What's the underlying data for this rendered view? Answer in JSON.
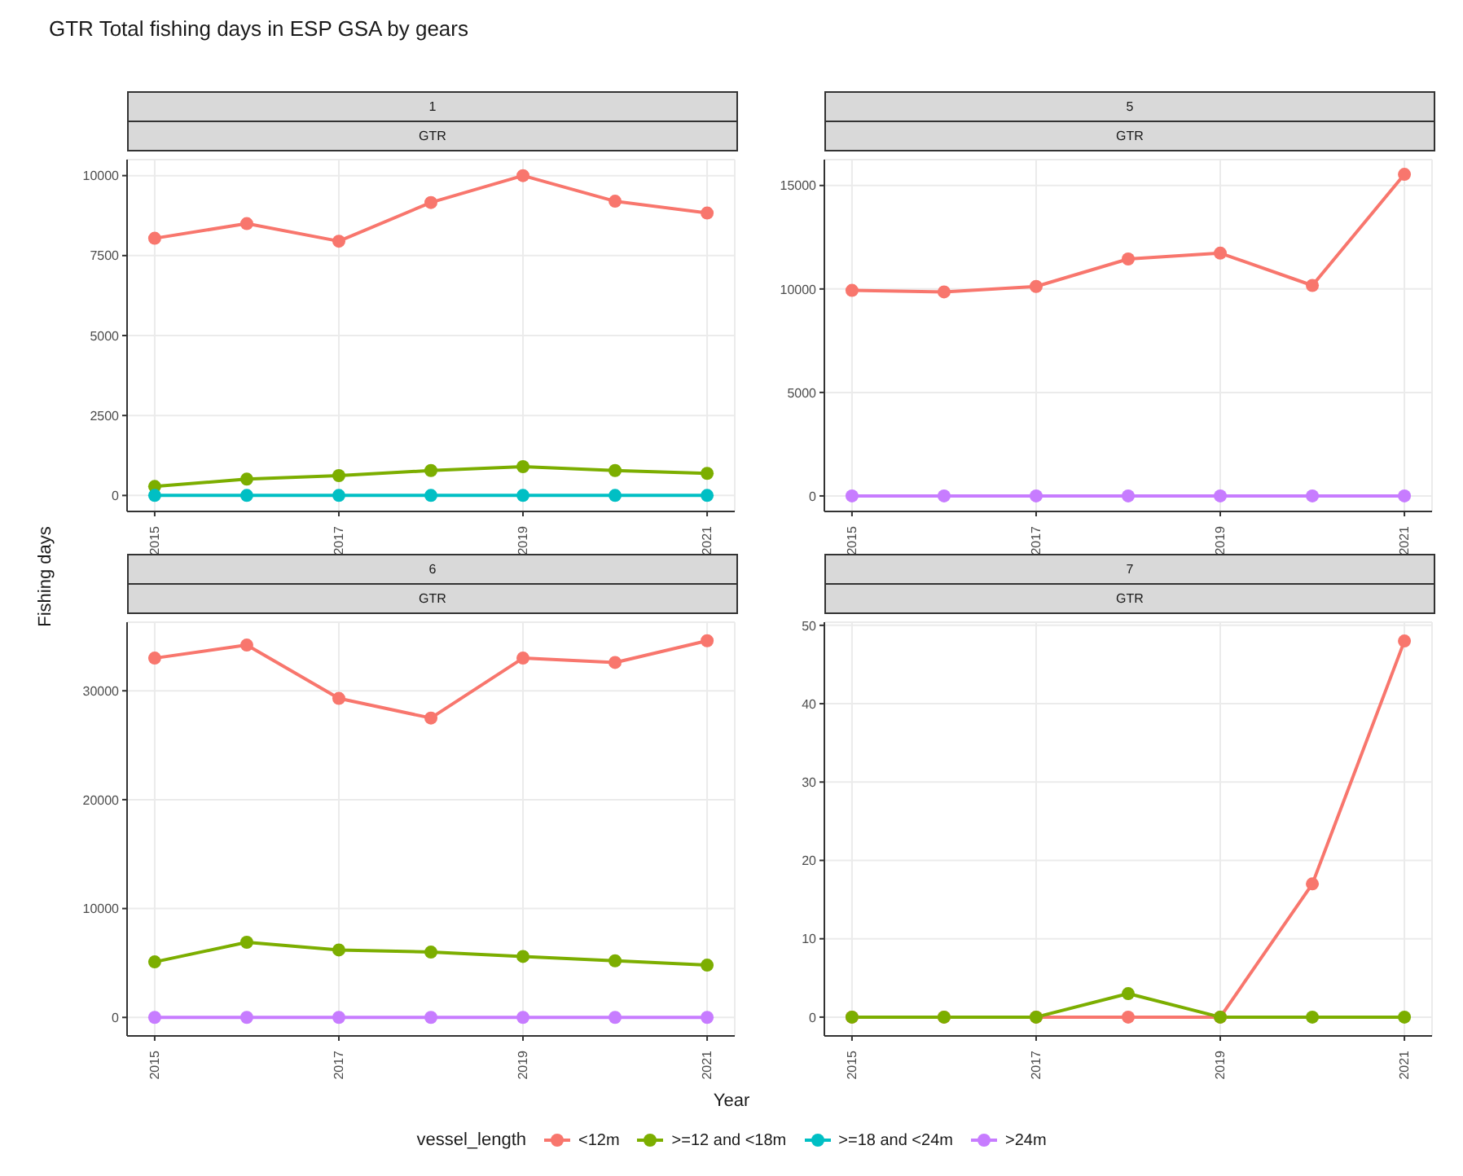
{
  "chart_data": [
    {
      "type": "line",
      "title": "1",
      "subtitle": "GTR",
      "x": [
        2015,
        2016,
        2017,
        2018,
        2019,
        2020,
        2021
      ],
      "xlim": [
        2014.7,
        2021.3
      ],
      "xticks": [
        2015,
        2017,
        2019,
        2021
      ],
      "ylim": [
        -500,
        10500
      ],
      "yticks": [
        0,
        2500,
        5000,
        7500,
        10000
      ],
      "grid": true,
      "marker": "circle",
      "legend": "bottom",
      "legend_title": "vessel_length",
      "annotations": [
        "GTR Total fishing days in ESP GSA by gears"
      ],
      "xlabel": "Year",
      "ylabel": "Fishing days",
      "series": [
        {
          "name": "<12m",
          "color": "#f8766d",
          "values": [
            8040,
            8500,
            7950,
            9160,
            10000,
            9200,
            8830
          ]
        },
        {
          "name": ">=12 and <18m",
          "color": "#7cae00",
          "values": [
            280,
            510,
            620,
            780,
            900,
            780,
            690
          ]
        },
        {
          "name": ">=18 and <24m",
          "color": "#00bfc4",
          "values": [
            0,
            0,
            0,
            0,
            0,
            0,
            0
          ]
        }
      ]
    },
    {
      "type": "line",
      "title": "5",
      "subtitle": "GTR",
      "x": [
        2015,
        2016,
        2017,
        2018,
        2019,
        2020,
        2021
      ],
      "xlim": [
        2014.7,
        2021.3
      ],
      "xticks": [
        2015,
        2017,
        2019,
        2021
      ],
      "ylim": [
        -750,
        16250
      ],
      "yticks": [
        0,
        5000,
        10000,
        15000
      ],
      "grid": true,
      "marker": "circle",
      "series": [
        {
          "name": "<12m",
          "color": "#f8766d",
          "values": [
            9930,
            9860,
            10120,
            11450,
            11730,
            10170,
            15540
          ]
        },
        {
          "name": ">24m",
          "color": "#c77cff",
          "values": [
            0,
            0,
            0,
            0,
            0,
            0,
            0
          ]
        }
      ]
    },
    {
      "type": "line",
      "title": "6",
      "subtitle": "GTR",
      "x": [
        2015,
        2016,
        2017,
        2018,
        2019,
        2020,
        2021
      ],
      "xlim": [
        2014.7,
        2021.3
      ],
      "xticks": [
        2015,
        2017,
        2019,
        2021
      ],
      "ylim": [
        -1700,
        36300
      ],
      "yticks": [
        0,
        10000,
        20000,
        30000
      ],
      "grid": true,
      "marker": "circle",
      "series": [
        {
          "name": "<12m",
          "color": "#f8766d",
          "values": [
            33000,
            34200,
            29300,
            27500,
            33000,
            32600,
            34600
          ]
        },
        {
          "name": ">=12 and <18m",
          "color": "#7cae00",
          "values": [
            5100,
            6900,
            6200,
            6000,
            5600,
            5200,
            4800
          ]
        },
        {
          "name": ">24m",
          "color": "#c77cff",
          "values": [
            0,
            0,
            0,
            0,
            0,
            0,
            0
          ]
        }
      ]
    },
    {
      "type": "line",
      "title": "7",
      "subtitle": "GTR",
      "x": [
        2015,
        2016,
        2017,
        2018,
        2019,
        2020,
        2021
      ],
      "xlim": [
        2014.7,
        2021.3
      ],
      "xticks": [
        2015,
        2017,
        2019,
        2021
      ],
      "ylim": [
        -2.4,
        50.4
      ],
      "yticks": [
        0,
        10,
        20,
        30,
        40,
        50
      ],
      "grid": true,
      "marker": "circle",
      "series": [
        {
          "name": "<12m",
          "color": "#f8766d",
          "values": [
            0,
            0,
            0,
            0,
            0,
            17,
            48
          ]
        },
        {
          "name": ">=12 and <18m",
          "color": "#7cae00",
          "values": [
            0,
            0,
            0,
            3,
            0,
            0,
            0
          ]
        }
      ]
    }
  ]
}
